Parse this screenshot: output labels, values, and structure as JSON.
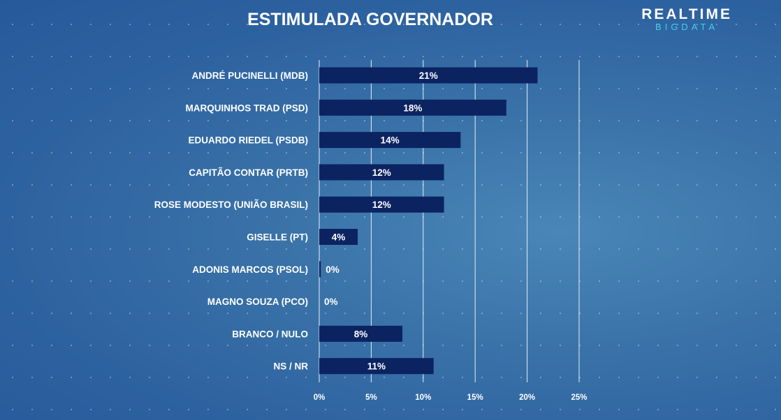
{
  "header": {
    "title": "ESTIMULADA GOVERNADOR",
    "logo_top": "REALTIME",
    "logo_bottom": "BIGDATA"
  },
  "colors": {
    "bar": "#0c2361",
    "gridline": "#e6eef8",
    "text": "#ffffff",
    "logo_accent": "#3fd0e8"
  },
  "chart_data": {
    "type": "bar",
    "orientation": "horizontal",
    "title": "ESTIMULADA GOVERNADOR",
    "categories": [
      "ANDRÉ PUCINELLI (MDB)",
      "MARQUINHOS TRAD (PSD)",
      "EDUARDO RIEDEL (PSDB)",
      "CAPITÃO CONTAR (PRTB)",
      "ROSE MODESTO (UNIÃO BRASIL)",
      "GISELLE (PT)",
      "ADONIS MARCOS (PSOL)",
      "MAGNO SOUZA (PCO)",
      "BRANCO / NULO",
      "NS / NR"
    ],
    "values": [
      21,
      18,
      14,
      12,
      12,
      4,
      0,
      0,
      8,
      11
    ],
    "plotted_values": [
      21,
      18,
      13.6,
      12,
      12,
      3.7,
      0.15,
      0,
      8,
      11
    ],
    "value_labels": [
      "21%",
      "18%",
      "14%",
      "12%",
      "12%",
      "4%",
      "0%",
      "0%",
      "8%",
      "11%"
    ],
    "xlim": [
      0,
      25
    ],
    "xticks": [
      0,
      5,
      10,
      15,
      20,
      25
    ],
    "xtick_labels": [
      "0%",
      "5%",
      "10%",
      "15%",
      "20%",
      "25%"
    ],
    "grid": true,
    "legend": "none"
  }
}
